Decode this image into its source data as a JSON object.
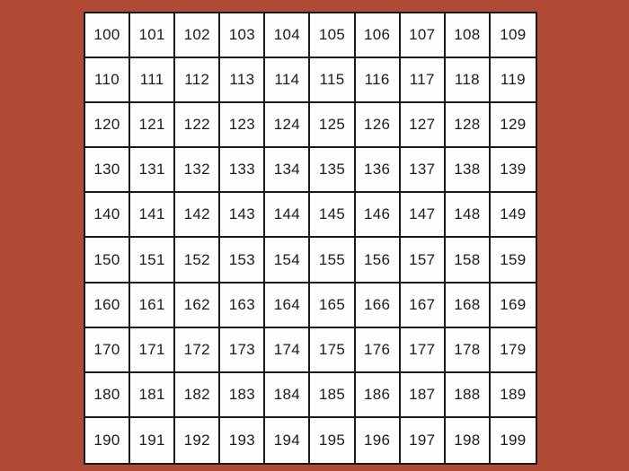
{
  "colors": {
    "background": "#b14a35",
    "cell_background": "#fdfdfb",
    "grid_line": "#1a1a1a",
    "number_text": "#1c1c1c"
  },
  "chart": {
    "name": "hundred-chart-100-199",
    "columns": 10,
    "rows_count": 10,
    "first_number": 100,
    "last_number": 199,
    "rows": [
      [
        "100",
        "101",
        "102",
        "103",
        "104",
        "105",
        "106",
        "107",
        "108",
        "109"
      ],
      [
        "110",
        "111",
        "112",
        "113",
        "114",
        "115",
        "116",
        "117",
        "118",
        "119"
      ],
      [
        "120",
        "121",
        "122",
        "123",
        "124",
        "125",
        "126",
        "127",
        "128",
        "129"
      ],
      [
        "130",
        "131",
        "132",
        "133",
        "134",
        "135",
        "136",
        "137",
        "138",
        "139"
      ],
      [
        "140",
        "141",
        "142",
        "143",
        "144",
        "145",
        "146",
        "147",
        "148",
        "149"
      ],
      [
        "150",
        "151",
        "152",
        "153",
        "154",
        "155",
        "156",
        "157",
        "158",
        "159"
      ],
      [
        "160",
        "161",
        "162",
        "163",
        "164",
        "165",
        "166",
        "167",
        "168",
        "169"
      ],
      [
        "170",
        "171",
        "172",
        "173",
        "174",
        "175",
        "176",
        "177",
        "178",
        "179"
      ],
      [
        "180",
        "181",
        "182",
        "183",
        "184",
        "185",
        "186",
        "187",
        "188",
        "189"
      ],
      [
        "190",
        "191",
        "192",
        "193",
        "194",
        "195",
        "196",
        "197",
        "198",
        "199"
      ]
    ]
  }
}
